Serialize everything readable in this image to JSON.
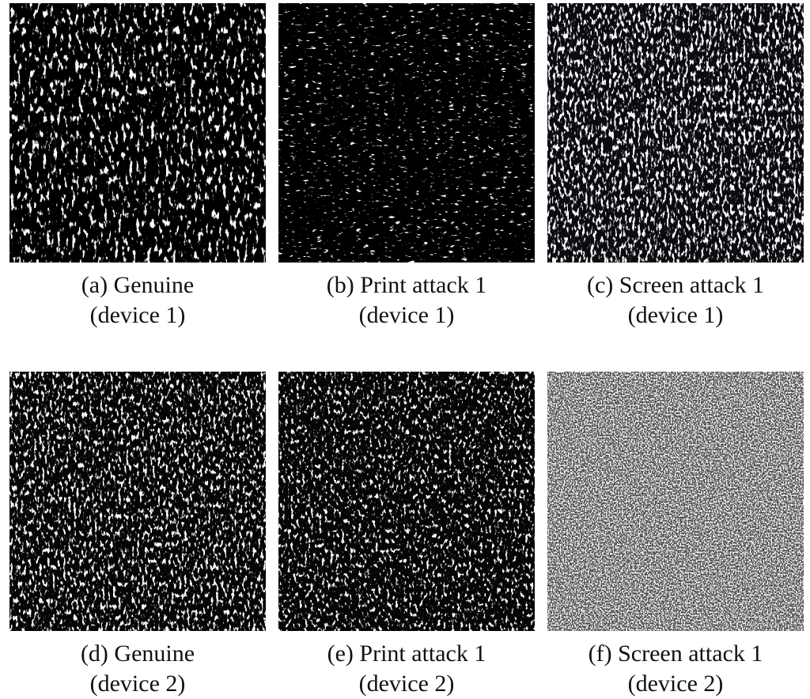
{
  "panels": [
    {
      "label": "(a) Genuine",
      "device": "(device 1)"
    },
    {
      "label": "(b) Print attack 1",
      "device": "(device 1)"
    },
    {
      "label": "(c) Screen attack 1",
      "device": "(device 1)"
    },
    {
      "label": "(d) Genuine",
      "device": "(device 2)"
    },
    {
      "label": "(e) Print attack 1",
      "device": "(device 2)"
    },
    {
      "label": "(f) Screen attack 1",
      "device": "(device 2)"
    }
  ]
}
